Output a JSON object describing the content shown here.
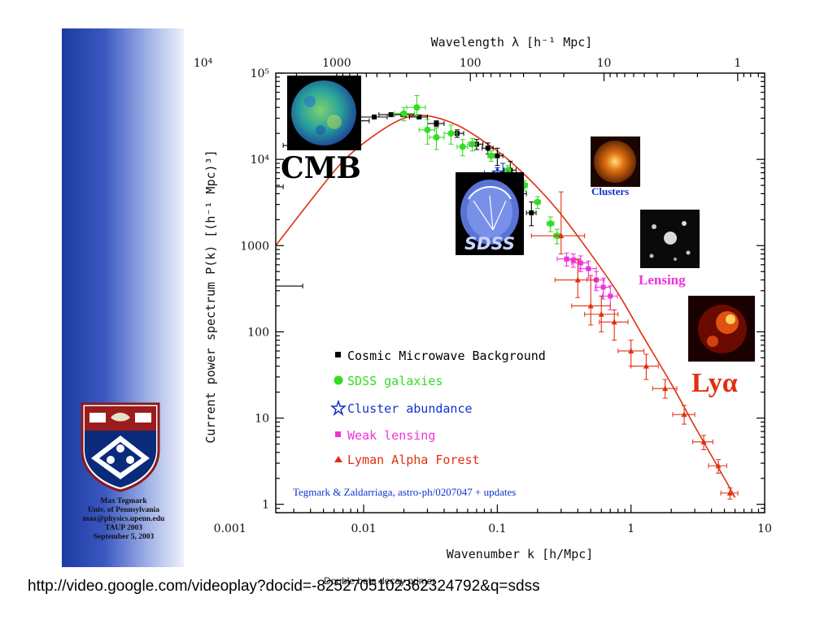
{
  "slide": {
    "credit_lines": [
      "Max Tegmark",
      "Univ. of Pennsylvania",
      "max@physics.upenn.edu",
      "TAUP 2003",
      "September 5, 2003"
    ],
    "caption": "Double beta decay primer",
    "url": "http://video.google.com/videoplay?docid=-8252705102362324792&q=sdss"
  },
  "colors": {
    "cmb": "#000000",
    "sdss": "#33dd22",
    "cluster": "#1133cc",
    "lensing": "#ee33dd",
    "lyman": "#e03010",
    "model": "#e03010",
    "sidebar": "#1c3aa0"
  },
  "chart_data": {
    "type": "scatter",
    "xlabel": "Wavenumber k [h/Mpc]",
    "ylabel": "Current power spectrum P(k) [(h⁻¹ Mpc)³]",
    "top_xlabel": "Wavelength λ [h⁻¹ Mpc]",
    "x_scale": "log",
    "y_scale": "log",
    "xlim": [
      0.0022,
      10
    ],
    "ylim": [
      0.8,
      100000
    ],
    "x_ticks": [
      "0.001",
      "0.01",
      "0.1",
      "1",
      "10"
    ],
    "y_ticks": [
      "1",
      "10",
      "100",
      "1000",
      "10⁴",
      "10⁵"
    ],
    "top_ticks": [
      "10⁴",
      "1000",
      "100",
      "10",
      "1"
    ],
    "legend_position": "center",
    "image_labels": {
      "cmb": "CMB",
      "sdss": "SDSS",
      "clusters": "Clusters",
      "lensing": "Lensing",
      "lya": "Lyα"
    },
    "credit": "Tegmark & Zaldarriaga, astro-ph/0207047 + updates",
    "model": {
      "name": "model",
      "x": [
        0.0022,
        0.004,
        0.007,
        0.012,
        0.02,
        0.03,
        0.05,
        0.08,
        0.12,
        0.2,
        0.3,
        0.5,
        0.8,
        1.2,
        2,
        3,
        5,
        6
      ],
      "y": [
        1000,
        3300,
        9500,
        19000,
        30000,
        32000,
        25000,
        16000,
        10000,
        4700,
        2300,
        800,
        280,
        95,
        25,
        8,
        2,
        1.2
      ]
    },
    "series": [
      {
        "name": "Cosmic Microwave Background",
        "marker": "square",
        "points": [
          {
            "x": 0.0007,
            "y": 340,
            "xerr": [
              0.00015,
              0.0035
            ],
            "yerr": [
              95,
              580
            ]
          },
          {
            "x": 0.0007,
            "y": 2500,
            "xerr": [
              0.00015,
              0.0016
            ],
            "yerr": [
              1500,
              3300
            ]
          },
          {
            "x": 0.0012,
            "y": 4800,
            "xerr": [
              0.0007,
              0.0025
            ],
            "yerr": [
              3700,
              5800
            ]
          },
          {
            "x": 0.004,
            "y": 14500,
            "xerr": [
              0.0025,
              0.006
            ],
            "yerr": [
              13500,
              15500
            ]
          },
          {
            "x": 0.008,
            "y": 28000,
            "xerr": [
              0.005,
              0.011
            ],
            "yerr": [
              27000,
              29000
            ]
          },
          {
            "x": 0.012,
            "y": 31000,
            "xerr": [
              0.009,
              0.015
            ],
            "yerr": [
              30000,
              32000
            ]
          },
          {
            "x": 0.016,
            "y": 33000,
            "xerr": [
              0.013,
              0.019
            ],
            "yerr": [
              32000,
              34000
            ]
          },
          {
            "x": 0.02,
            "y": 33000,
            "xerr": [
              0.017,
              0.024
            ],
            "yerr": [
              31500,
              34500
            ]
          },
          {
            "x": 0.026,
            "y": 31000,
            "xerr": [
              0.022,
              0.03
            ],
            "yerr": [
              29500,
              32500
            ]
          },
          {
            "x": 0.035,
            "y": 26000,
            "xerr": [
              0.03,
              0.04
            ],
            "yerr": [
              24000,
              28000
            ]
          },
          {
            "x": 0.05,
            "y": 20000,
            "xerr": [
              0.044,
              0.056
            ],
            "yerr": [
              18000,
              22000
            ]
          },
          {
            "x": 0.07,
            "y": 15000,
            "xerr": [
              0.062,
              0.078
            ],
            "yerr": [
              13000,
              17000
            ]
          },
          {
            "x": 0.085,
            "y": 13500,
            "xerr": [
              0.077,
              0.093
            ],
            "yerr": [
              11500,
              15500
            ]
          },
          {
            "x": 0.1,
            "y": 11000,
            "xerr": [
              0.09,
              0.11
            ],
            "yerr": [
              8500,
              13500
            ]
          },
          {
            "x": 0.125,
            "y": 7500,
            "xerr": [
              0.112,
              0.138
            ],
            "yerr": [
              5500,
              9500
            ]
          },
          {
            "x": 0.15,
            "y": 4000,
            "xerr": [
              0.135,
              0.165
            ],
            "yerr": [
              2800,
              5200
            ]
          },
          {
            "x": 0.18,
            "y": 2400,
            "xerr": [
              0.165,
              0.195
            ],
            "yerr": [
              1700,
              3200
            ]
          }
        ]
      },
      {
        "name": "SDSS galaxies",
        "marker": "circle",
        "points": [
          {
            "x": 0.02,
            "y": 34000,
            "xerr": [
              0.017,
              0.024
            ],
            "yerr": [
              28000,
              40000
            ]
          },
          {
            "x": 0.025,
            "y": 40000,
            "xerr": [
              0.021,
              0.029
            ],
            "yerr": [
              32000,
              55000
            ]
          },
          {
            "x": 0.03,
            "y": 22000,
            "xerr": [
              0.026,
              0.034
            ],
            "yerr": [
              15000,
              29000
            ]
          },
          {
            "x": 0.035,
            "y": 18000,
            "xerr": [
              0.031,
              0.04
            ],
            "yerr": [
              13000,
              23000
            ]
          },
          {
            "x": 0.045,
            "y": 20000,
            "xerr": [
              0.04,
              0.05
            ],
            "yerr": [
              15000,
              25000
            ]
          },
          {
            "x": 0.055,
            "y": 14000,
            "xerr": [
              0.05,
              0.06
            ],
            "yerr": [
              11000,
              17000
            ]
          },
          {
            "x": 0.065,
            "y": 15000,
            "xerr": [
              0.06,
              0.07
            ],
            "yerr": [
              12500,
              17500
            ]
          },
          {
            "x": 0.09,
            "y": 11000,
            "xerr": [
              0.085,
              0.095
            ],
            "yerr": [
              9500,
              12500
            ]
          },
          {
            "x": 0.12,
            "y": 7500,
            "xerr": [
              0.114,
              0.126
            ],
            "yerr": [
              6500,
              8500
            ]
          },
          {
            "x": 0.16,
            "y": 5000,
            "xerr": [
              0.152,
              0.168
            ],
            "yerr": [
              4300,
              5700
            ]
          },
          {
            "x": 0.2,
            "y": 3200,
            "xerr": [
              0.19,
              0.21
            ],
            "yerr": [
              2700,
              3700
            ]
          },
          {
            "x": 0.25,
            "y": 1800,
            "xerr": [
              0.235,
              0.265
            ],
            "yerr": [
              1450,
              2150
            ]
          },
          {
            "x": 0.28,
            "y": 1300,
            "xerr": [
              0.265,
              0.295
            ],
            "yerr": [
              1050,
              1550
            ]
          }
        ]
      },
      {
        "name": "Cluster abundance",
        "marker": "star",
        "points": [
          {
            "x": 0.1,
            "y": 7000,
            "xerr": [
              0.08,
              0.12
            ],
            "yerr": [
              6000,
              8000
            ]
          },
          {
            "x": 0.11,
            "y": 6500,
            "xerr": [
              0.09,
              0.13
            ],
            "yerr": [
              3500,
              9000
            ]
          }
        ]
      },
      {
        "name": "Weak lensing",
        "marker": "square",
        "points": [
          {
            "x": 0.33,
            "y": 700,
            "xerr": [
              0.28,
              0.38
            ],
            "yerr": [
              580,
              820
            ]
          },
          {
            "x": 0.37,
            "y": 680,
            "xerr": [
              0.32,
              0.42
            ],
            "yerr": [
              560,
              800
            ]
          },
          {
            "x": 0.42,
            "y": 630,
            "xerr": [
              0.36,
              0.48
            ],
            "yerr": [
              500,
              760
            ]
          },
          {
            "x": 0.48,
            "y": 540,
            "xerr": [
              0.41,
              0.55
            ],
            "yerr": [
              420,
              660
            ]
          },
          {
            "x": 0.55,
            "y": 400,
            "xerr": [
              0.47,
              0.63
            ],
            "yerr": [
              300,
              500
            ]
          },
          {
            "x": 0.62,
            "y": 330,
            "xerr": [
              0.54,
              0.7
            ],
            "yerr": [
              240,
              420
            ]
          },
          {
            "x": 0.7,
            "y": 260,
            "xerr": [
              0.61,
              0.79
            ],
            "yerr": [
              180,
              340
            ]
          }
        ]
      },
      {
        "name": "Lyman Alpha Forest",
        "marker": "triangle",
        "points": [
          {
            "x": 0.3,
            "y": 1300,
            "xerr": [
              0.18,
              0.45
            ],
            "yerr": [
              800,
              4200
            ]
          },
          {
            "x": 0.4,
            "y": 400,
            "xerr": [
              0.27,
              0.55
            ],
            "yerr": [
              250,
              700
            ]
          },
          {
            "x": 0.5,
            "y": 200,
            "xerr": [
              0.36,
              0.7
            ],
            "yerr": [
              120,
              450
            ]
          },
          {
            "x": 0.6,
            "y": 160,
            "xerr": [
              0.45,
              0.8
            ],
            "yerr": [
              100,
              260
            ]
          },
          {
            "x": 0.75,
            "y": 130,
            "xerr": [
              0.58,
              0.95
            ],
            "yerr": [
              80,
              180
            ]
          },
          {
            "x": 1.0,
            "y": 60,
            "xerr": [
              0.8,
              1.25
            ],
            "yerr": [
              40,
              80
            ]
          },
          {
            "x": 1.3,
            "y": 40,
            "xerr": [
              1.0,
              1.6
            ],
            "yerr": [
              28,
              55
            ]
          },
          {
            "x": 1.8,
            "y": 22,
            "xerr": [
              1.45,
              2.2
            ],
            "yerr": [
              17,
              28
            ]
          },
          {
            "x": 2.5,
            "y": 11,
            "xerr": [
              2.05,
              3.0
            ],
            "yerr": [
              8.5,
              14
            ]
          },
          {
            "x": 3.5,
            "y": 5.3,
            "xerr": [
              2.9,
              4.1
            ],
            "yerr": [
              4.3,
              6.3
            ]
          },
          {
            "x": 4.5,
            "y": 2.8,
            "xerr": [
              3.8,
              5.2
            ],
            "yerr": [
              2.3,
              3.3
            ]
          },
          {
            "x": 5.5,
            "y": 1.35,
            "xerr": [
              4.7,
              6.3
            ],
            "yerr": [
              1.15,
              1.55
            ]
          }
        ]
      }
    ]
  }
}
